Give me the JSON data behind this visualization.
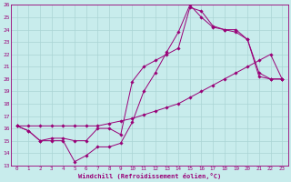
{
  "xlabel": "Windchill (Refroidissement éolien,°C)",
  "bg_color": "#c8ecec",
  "line_color": "#990077",
  "grid_color": "#aad4d4",
  "hours": [
    0,
    1,
    2,
    3,
    4,
    5,
    6,
    7,
    8,
    9,
    10,
    11,
    12,
    13,
    14,
    15,
    16,
    17,
    18,
    19,
    20,
    21,
    22,
    23
  ],
  "line1": [
    16.2,
    15.8,
    15.0,
    15.0,
    15.0,
    13.3,
    13.8,
    14.5,
    14.5,
    14.8,
    16.5,
    19.0,
    20.5,
    22.2,
    23.8,
    26.0,
    25.0,
    24.2,
    24.0,
    24.0,
    23.2,
    20.2,
    20.0,
    20.0
  ],
  "line2": [
    16.2,
    15.8,
    15.0,
    15.2,
    15.2,
    15.0,
    15.0,
    16.0,
    16.0,
    15.5,
    19.8,
    21.0,
    21.5,
    22.0,
    22.5,
    25.8,
    25.5,
    24.3,
    24.0,
    23.8,
    23.2,
    20.5,
    20.0,
    20.0
  ],
  "line3": [
    16.2,
    16.2,
    16.2,
    16.2,
    16.2,
    16.2,
    16.2,
    16.2,
    16.4,
    16.6,
    16.8,
    17.1,
    17.4,
    17.7,
    18.0,
    18.5,
    19.0,
    19.5,
    20.0,
    20.5,
    21.0,
    21.5,
    22.0,
    20.0
  ],
  "ylim": [
    13,
    26
  ],
  "xlim_min": -0.5,
  "xlim_max": 23.5,
  "yticks": [
    13,
    14,
    15,
    16,
    17,
    18,
    19,
    20,
    21,
    22,
    23,
    24,
    25,
    26
  ],
  "xticks": [
    0,
    1,
    2,
    3,
    4,
    5,
    6,
    7,
    8,
    9,
    10,
    11,
    12,
    13,
    14,
    15,
    16,
    17,
    18,
    19,
    20,
    21,
    22,
    23
  ]
}
